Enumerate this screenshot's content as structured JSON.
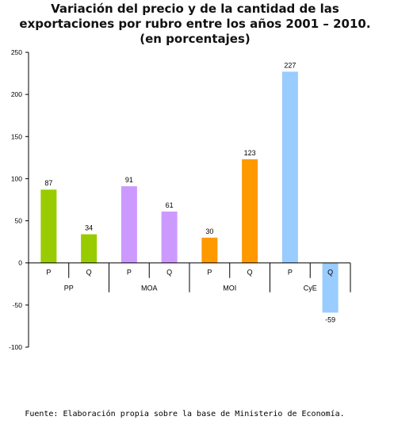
{
  "chart_data": {
    "type": "bar",
    "title_lines": [
      "Variación del precio y de la cantidad de las",
      "exportaciones por rubro entre los años 2001 – 2010.",
      "(en porcentajes)"
    ],
    "groups": [
      "PP",
      "MOA",
      "MOI",
      "CyE"
    ],
    "categories": [
      "P",
      "Q",
      "P",
      "Q",
      "P",
      "Q",
      "P",
      "Q"
    ],
    "values": [
      87,
      34,
      91,
      61,
      30,
      123,
      227,
      -59
    ],
    "data_labels": [
      "87",
      "34",
      "91",
      "61",
      "30",
      "123",
      "227",
      "-59"
    ],
    "colors": [
      "#99cc00",
      "#99cc00",
      "#cc99ff",
      "#cc99ff",
      "#ff9900",
      "#ff9900",
      "#99ccff",
      "#99ccff"
    ],
    "ylim": [
      -100,
      250
    ],
    "yticks": [
      -100,
      -50,
      0,
      50,
      100,
      150,
      200,
      250
    ],
    "ytick_labels": [
      "-100",
      "-50",
      "0",
      "50",
      "100",
      "150",
      "200",
      "250"
    ],
    "grid": false,
    "legend": "none",
    "source": "Fuente: Elaboración propia sobre la base de Ministerio de Economía."
  }
}
